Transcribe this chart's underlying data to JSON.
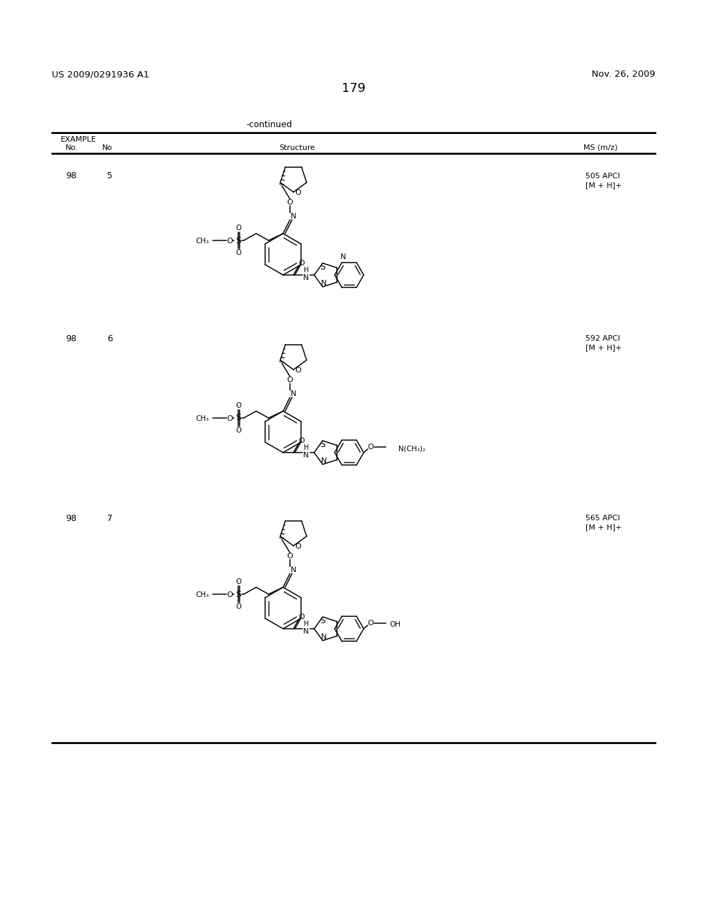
{
  "page_number": "179",
  "patent_number": "US 2009/0291936 A1",
  "patent_date": "Nov. 26, 2009",
  "continued_text": "-continued",
  "example_label": "EXAMPLE",
  "col1": "No.",
  "col2": "No",
  "col3": "Structure",
  "col4": "MS (m/z)",
  "rows": [
    {
      "ex_no": "98",
      "comp_no": "5",
      "ms1": "505 APCI",
      "ms2": "[M + H]+"
    },
    {
      "ex_no": "98",
      "comp_no": "6",
      "ms1": "592 APCI",
      "ms2": "[M + H]+"
    },
    {
      "ex_no": "98",
      "comp_no": "7",
      "ms1": "565 APCI",
      "ms2": "[M + H]+"
    }
  ],
  "bg": "#ffffff",
  "lc": "#000000"
}
